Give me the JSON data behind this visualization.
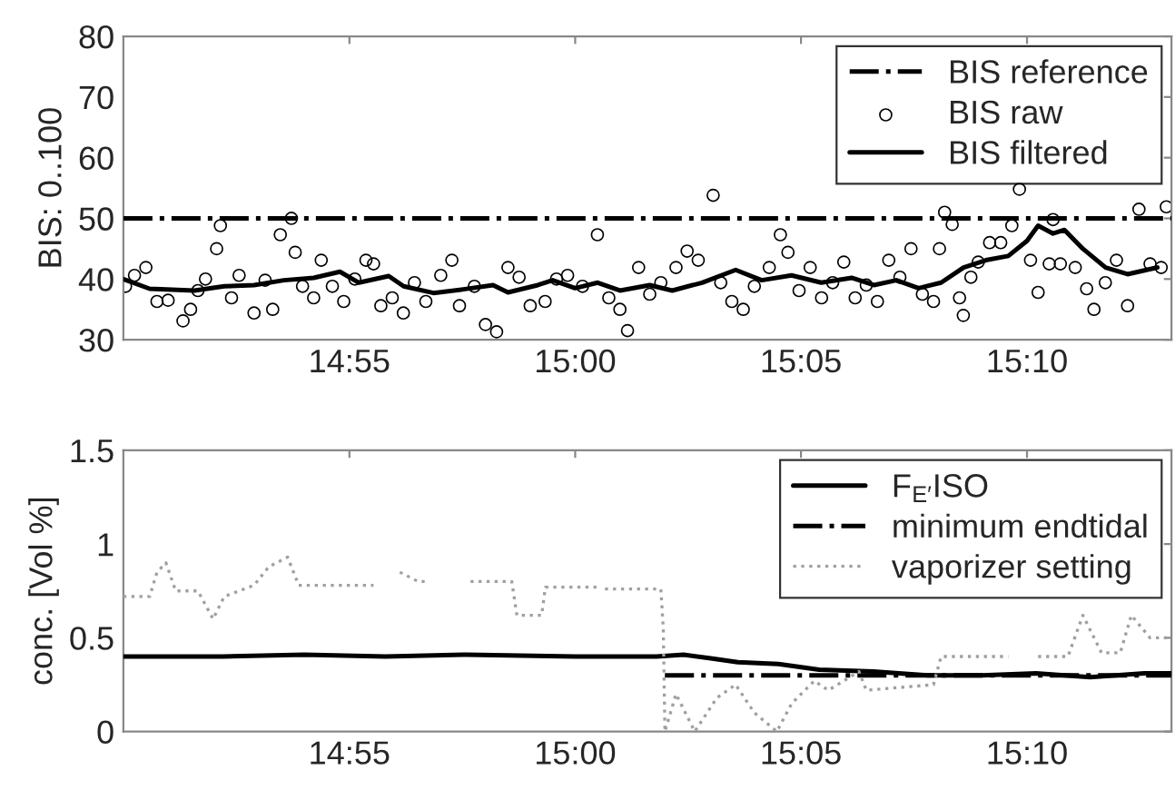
{
  "chart_data": [
    {
      "type": "line",
      "ylabel": "BIS: 0..100",
      "xlim": [
        14.8333,
        15.22
      ],
      "ylim": [
        30,
        80
      ],
      "yticks": [
        30,
        40,
        50,
        60,
        70,
        80
      ],
      "xticks": [
        {
          "value": 14.9167,
          "label": "14:55"
        },
        {
          "value": 15.0,
          "label": "15:00"
        },
        {
          "value": 15.0833,
          "label": "15:05"
        },
        {
          "value": 15.1667,
          "label": "15:10"
        }
      ],
      "legend": "top right",
      "grid": false,
      "series": [
        {
          "name": "BIS reference",
          "color": "#000000",
          "line_style": "dashdot",
          "marker": "none",
          "x": [
            14.8333,
            15.22
          ],
          "values": [
            50,
            50
          ]
        },
        {
          "name": "BIS raw",
          "type": "scatter",
          "color": "#000000",
          "marker": "circle",
          "x": [
            14.8341,
            14.8374,
            14.8416,
            14.8457,
            14.8498,
            14.8553,
            14.8581,
            14.8608,
            14.8636,
            14.8677,
            14.8691,
            14.8732,
            14.876,
            14.8815,
            14.8856,
            14.8884,
            14.8912,
            14.8953,
            14.8967,
            14.8994,
            14.9035,
            14.9063,
            14.9104,
            14.9146,
            14.9187,
            14.9228,
            14.9256,
            14.9283,
            14.9325,
            14.9366,
            14.9407,
            14.9449,
            14.9504,
            14.9545,
            14.9573,
            14.9628,
            14.9669,
            14.971,
            14.9752,
            14.9793,
            14.9834,
            14.9889,
            14.9931,
            14.9972,
            15.0027,
            15.0082,
            15.0124,
            15.0165,
            15.0193,
            15.0234,
            15.0275,
            15.0316,
            15.0372,
            15.0413,
            15.0454,
            15.0509,
            15.0537,
            15.0578,
            15.062,
            15.0661,
            15.0716,
            15.0757,
            15.0785,
            15.0826,
            15.0867,
            15.0909,
            15.095,
            15.0991,
            15.1033,
            15.1074,
            15.1115,
            15.1157,
            15.1198,
            15.1239,
            15.1281,
            15.1322,
            15.1344,
            15.1363,
            15.1391,
            15.1418,
            15.1432,
            15.146,
            15.1487,
            15.1529,
            15.157,
            15.1611,
            15.1639,
            15.168,
            15.1708,
            15.1749,
            15.1763,
            15.179,
            15.1845,
            15.1887,
            15.1914,
            15.1956,
            15.1997,
            15.2038,
            15.208,
            15.2121,
            15.2162,
            15.2181
          ],
          "values": [
            38.8,
            40.6,
            41.9,
            36.3,
            36.5,
            33.1,
            35,
            38.1,
            40,
            45,
            48.8,
            36.9,
            40.6,
            34.4,
            39.8,
            35,
            47.3,
            50,
            44.4,
            38.8,
            36.9,
            43.1,
            38.8,
            36.3,
            40,
            43.1,
            42.5,
            35.6,
            36.9,
            34.4,
            39.4,
            36.3,
            40.6,
            43.1,
            35.6,
            38.8,
            32.5,
            31.3,
            41.9,
            40.3,
            35.6,
            36.3,
            40,
            40.6,
            38.8,
            47.3,
            36.9,
            35,
            31.5,
            41.9,
            37.5,
            39.4,
            41.9,
            44.6,
            43.1,
            53.8,
            39.4,
            36.3,
            35,
            38.8,
            41.9,
            47.3,
            44.4,
            38.1,
            41.9,
            36.9,
            39.4,
            42.8,
            36.9,
            39,
            36.3,
            43.1,
            40.3,
            45,
            37.5,
            36.3,
            45,
            51,
            49,
            36.9,
            34,
            40.3,
            42.8,
            46,
            46,
            48.8,
            54.8,
            43.1,
            37.8,
            42.5,
            49.8,
            42.5,
            41.9,
            38.4,
            35,
            39.4,
            43.1,
            35.6,
            51.5,
            42.5,
            41.9,
            51.9
          ]
        },
        {
          "name": "BIS filtered",
          "color": "#000000",
          "line_style": "solid",
          "marker": "none",
          "x": [
            14.8333,
            14.843,
            14.8595,
            14.8705,
            14.8815,
            14.8925,
            14.9035,
            14.9132,
            14.9202,
            14.9312,
            14.9367,
            14.9477,
            14.9587,
            14.9697,
            14.9752,
            14.9862,
            14.9917,
            15.0,
            15.0083,
            15.0165,
            15.0275,
            15.0358,
            15.0468,
            15.0592,
            15.0688,
            15.0798,
            15.0908,
            15.102,
            15.1102,
            15.1185,
            15.1267,
            15.135,
            15.1433,
            15.1515,
            15.1598,
            15.1667,
            15.1708,
            15.1763,
            15.1805,
            15.1873,
            15.1957,
            15.2038,
            15.2148
          ],
          "values": [
            40,
            38.4,
            38.1,
            38.8,
            39,
            39.8,
            40.2,
            41.2,
            39.4,
            40.5,
            38.8,
            37.7,
            38.3,
            39,
            37.8,
            39,
            39.8,
            38.5,
            39.4,
            38.1,
            39,
            38.1,
            39.4,
            41.5,
            39.8,
            40.6,
            39.4,
            40.2,
            39,
            39.8,
            38.5,
            39.4,
            41.9,
            43.1,
            43.8,
            46.3,
            48.8,
            47.5,
            48.1,
            45,
            41.9,
            40.8,
            41.9
          ]
        }
      ]
    },
    {
      "type": "line",
      "ylabel": "conc. [Vol %]",
      "xlim": [
        14.8333,
        15.22
      ],
      "ylim": [
        0,
        1.5
      ],
      "yticks": [
        0,
        0.5,
        {
          "value": 1,
          "label": "1"
        },
        1.5
      ],
      "xticks": [
        {
          "value": 14.9167,
          "label": "14:55"
        },
        {
          "value": 15.0,
          "label": "15:00"
        },
        {
          "value": 15.0833,
          "label": "15:05"
        },
        {
          "value": 15.1667,
          "label": "15:10"
        }
      ],
      "legend": "top right",
      "grid": false,
      "series": [
        {
          "name": "F$_{E′}$ISO",
          "color": "#000000",
          "line_style": "solid",
          "marker": "none",
          "x": [
            14.8333,
            14.87,
            14.9,
            14.93,
            14.96,
            15.0,
            15.018,
            15.03,
            15.04,
            15.05,
            15.06,
            15.075,
            15.09,
            15.11,
            15.13,
            15.15,
            15.17,
            15.19,
            15.21,
            15.22
          ],
          "values": [
            0.4,
            0.4,
            0.41,
            0.4,
            0.41,
            0.4,
            0.4,
            0.4,
            0.41,
            0.39,
            0.37,
            0.36,
            0.33,
            0.32,
            0.3,
            0.3,
            0.31,
            0.29,
            0.31,
            0.31
          ]
        },
        {
          "name": "minimum endtidal",
          "color": "#000000",
          "line_style": "dashdot",
          "marker": "none",
          "x": [
            15.0331,
            15.22
          ],
          "values": [
            0.3,
            0.3
          ]
        },
        {
          "name": "vaporizer setting",
          "color": "#a0a0a0",
          "line_style": "dotted",
          "marker": "none",
          "x": [
            14.8333,
            14.843,
            14.8457,
            14.849,
            14.8526,
            14.8608,
            14.8664,
            14.8705,
            14.8815,
            14.887,
            14.8939,
            14.898,
            14.9256,
            14.93,
            14.9353,
            14.9421,
            14.9463,
            14.955,
            14.9614,
            14.9766,
            14.9785,
            14.9876,
            14.989,
            15.0082,
            15.0096,
            15.011,
            15.0316,
            15.0325,
            15.0331,
            15.0372,
            15.0441,
            15.0523,
            15.0592,
            15.0661,
            15.0744,
            15.0799,
            15.0882,
            15.0934,
            15.1047,
            15.1074,
            15.1322,
            15.135,
            15.1598,
            15.165,
            15.1708,
            15.1818,
            15.1873,
            15.1942,
            15.2011,
            15.2052,
            15.2121,
            15.2195
          ],
          "values": [
            0.72,
            0.72,
            0.85,
            0.9,
            0.75,
            0.75,
            0.6,
            0.72,
            0.78,
            0.88,
            0.93,
            0.78,
            0.78,
            null,
            0.85,
            0.8,
            0.8,
            null,
            0.8,
            0.8,
            0.62,
            0.62,
            0.77,
            0.77,
            null,
            0.76,
            0.76,
            0.55,
            0,
            0.2,
            0,
            0.18,
            0.25,
            0.1,
            0,
            0.15,
            0.27,
            0.22,
            0.32,
            0.22,
            0.25,
            0.4,
            0.4,
            null,
            0.4,
            0.4,
            0.62,
            0.42,
            0.42,
            0.62,
            0.5,
            0.5
          ]
        }
      ]
    }
  ]
}
